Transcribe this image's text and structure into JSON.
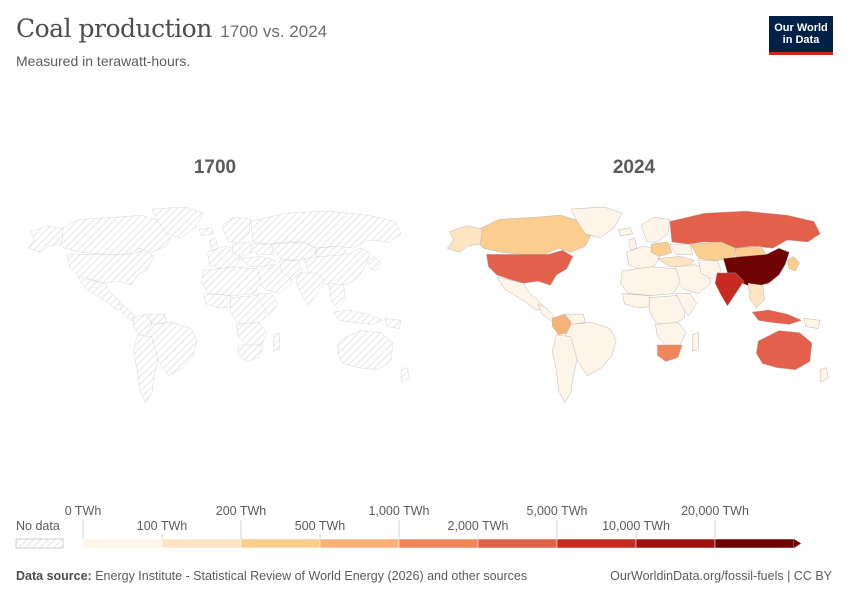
{
  "header": {
    "title": "Coal production",
    "title_years": "1700 vs. 2024",
    "subtitle": "Measured in terawatt-hours."
  },
  "logo": {
    "line1": "Our World",
    "line2": "in Data"
  },
  "maps": [
    {
      "year_label": "1700",
      "has_data": false
    },
    {
      "year_label": "2024",
      "has_data": true
    }
  ],
  "legend": {
    "no_data_label": "No data",
    "unit": "TWh",
    "bins": [
      {
        "from": "0 TWh",
        "to": "100 TWh",
        "color": "#fef5e8"
      },
      {
        "from": "100 TWh",
        "to": "200 TWh",
        "color": "#fde5c4"
      },
      {
        "from": "200 TWh",
        "to": "500 TWh",
        "color": "#fbcd8f"
      },
      {
        "from": "500 TWh",
        "to": "1,000 TWh",
        "color": "#f7b27a"
      },
      {
        "from": "1,000 TWh",
        "to": "2,000 TWh",
        "color": "#ef8559"
      },
      {
        "from": "2,000 TWh",
        "to": "5,000 TWh",
        "color": "#e3604a"
      },
      {
        "from": "5,000 TWh",
        "to": "10,000 TWh",
        "color": "#c72a21"
      },
      {
        "from": "10,000 TWh",
        "to": "20,000 TWh",
        "color": "#a30f0e"
      },
      {
        "from": "20,000 TWh",
        "to": "",
        "color": "#6f0303"
      }
    ],
    "upper_labels": [
      "0 TWh",
      "200 TWh",
      "1,000 TWh",
      "5,000 TWh",
      "20,000 TWh"
    ],
    "lower_labels": [
      "100 TWh",
      "500 TWh",
      "2,000 TWh",
      "10,000 TWh"
    ]
  },
  "footer": {
    "source_label": "Data source:",
    "source_text": "Energy Institute - Statistical Review of World Energy (2026) and other sources",
    "url_text": "OurWorldinData.org/fossil-fuels | CC BY"
  },
  "colors": {
    "no_data_hatch": "#dcdcdc",
    "border": "#999999",
    "accent_red": "#ce261e",
    "logo_bg": "#002147"
  }
}
